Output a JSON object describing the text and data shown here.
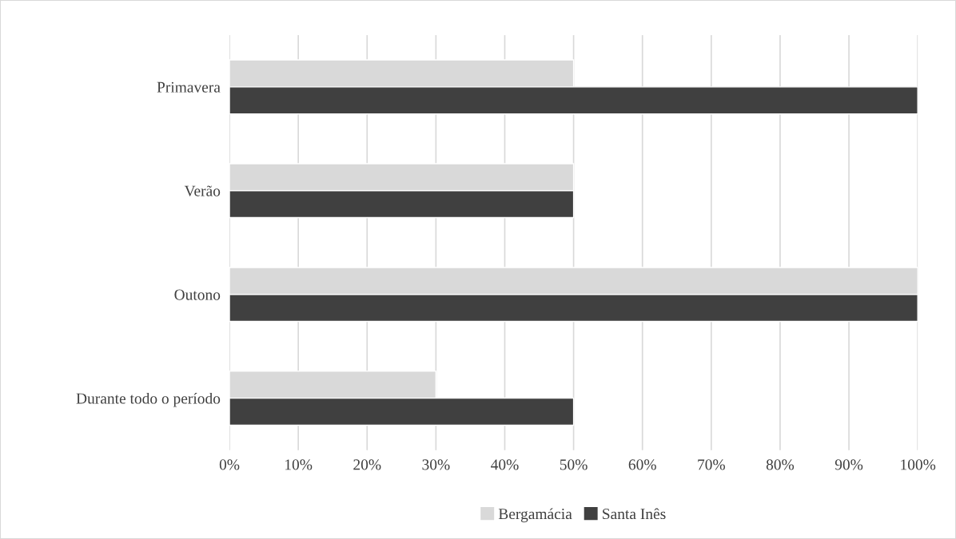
{
  "chart_data": {
    "type": "bar",
    "orientation": "horizontal",
    "categories": [
      "Primavera",
      "Verão",
      "Outono",
      "Durante todo o período"
    ],
    "series": [
      {
        "name": "Bergamácia",
        "color": "#d9d9d9",
        "values": [
          50,
          50,
          100,
          30
        ]
      },
      {
        "name": "Santa Inês",
        "color": "#404040",
        "values": [
          100,
          50,
          100,
          50
        ]
      }
    ],
    "xlim": [
      0,
      100
    ],
    "xticks": [
      {
        "value": 0,
        "label": "0%"
      },
      {
        "value": 10,
        "label": "10%"
      },
      {
        "value": 20,
        "label": "20%"
      },
      {
        "value": 30,
        "label": "30%"
      },
      {
        "value": 40,
        "label": "40%"
      },
      {
        "value": 50,
        "label": "50%"
      },
      {
        "value": 60,
        "label": "60%"
      },
      {
        "value": 70,
        "label": "70%"
      },
      {
        "value": 80,
        "label": "80%"
      },
      {
        "value": 90,
        "label": "90%"
      },
      {
        "value": 100,
        "label": "100%"
      }
    ],
    "grid": "x",
    "legend": "bottom"
  }
}
